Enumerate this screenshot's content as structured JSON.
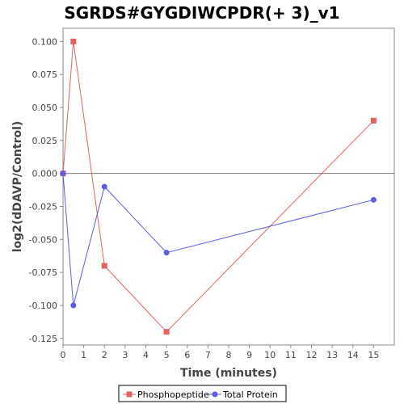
{
  "chart_data": {
    "type": "line",
    "title": "SGRDS#GYGDIWCPDR(+ 3)_v1",
    "xlabel": "Time (minutes)",
    "ylabel": "log2(dDAVP/Control)",
    "xlim": [
      0,
      16
    ],
    "ylim": [
      -0.13,
      0.11
    ],
    "xticks": [
      "0",
      "1",
      "2",
      "3",
      "4",
      "5",
      "6",
      "7",
      "8",
      "9",
      "10",
      "11",
      "12",
      "13",
      "14",
      "15"
    ],
    "yticks": [
      "0.100",
      "0.075",
      "0.050",
      "0.025",
      "0.000",
      "-0.025",
      "-0.050",
      "-0.075",
      "-0.100",
      "-0.125"
    ],
    "grid": false,
    "zero_line": true,
    "legend_position": "bottom",
    "series": [
      {
        "name": "Phosphopeptide",
        "color": "#e8605e",
        "marker": "square",
        "x": [
          0,
          0.5,
          2,
          5,
          15
        ],
        "y": [
          0.0,
          0.1,
          -0.07,
          -0.12,
          0.04
        ]
      },
      {
        "name": "Total Protein",
        "color": "#5b5be6",
        "marker": "circle",
        "x": [
          0,
          0.5,
          2,
          5,
          15
        ],
        "y": [
          0.0,
          -0.1,
          -0.01,
          -0.06,
          -0.02
        ]
      }
    ]
  }
}
